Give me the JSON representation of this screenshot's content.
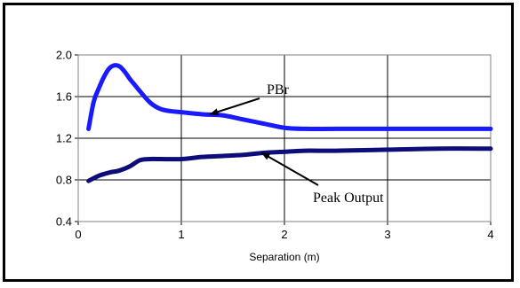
{
  "chart_data": {
    "type": "line",
    "title": "",
    "xlabel": "Separation (m)",
    "ylabel": "",
    "xlim": [
      0,
      4
    ],
    "ylim": [
      0.4,
      2.0
    ],
    "xticks": [
      "0",
      "1",
      "2",
      "3",
      "4"
    ],
    "yticks": [
      "0.4",
      "0.8",
      "1.2",
      "1.6",
      "2.0"
    ],
    "grid": true,
    "series": [
      {
        "name": "PBr",
        "color": "#1a1aff",
        "x": [
          0.1,
          0.15,
          0.2,
          0.25,
          0.3,
          0.35,
          0.4,
          0.45,
          0.5,
          0.55,
          0.6,
          0.7,
          0.8,
          0.9,
          1.0,
          1.2,
          1.4,
          1.6,
          1.8,
          2.0,
          2.2,
          2.5,
          3.0,
          3.5,
          4.0
        ],
        "values": [
          1.29,
          1.55,
          1.68,
          1.79,
          1.87,
          1.9,
          1.89,
          1.84,
          1.77,
          1.71,
          1.65,
          1.54,
          1.48,
          1.46,
          1.45,
          1.43,
          1.42,
          1.38,
          1.34,
          1.3,
          1.29,
          1.29,
          1.29,
          1.29,
          1.29
        ]
      },
      {
        "name": "Peak Output",
        "color": "#0d0d7a",
        "x": [
          0.1,
          0.2,
          0.3,
          0.4,
          0.5,
          0.6,
          0.7,
          0.8,
          1.0,
          1.2,
          1.4,
          1.6,
          1.8,
          2.0,
          2.2,
          2.5,
          3.0,
          3.5,
          4.0
        ],
        "values": [
          0.79,
          0.84,
          0.87,
          0.89,
          0.93,
          0.99,
          1.0,
          1.0,
          1.0,
          1.02,
          1.03,
          1.04,
          1.06,
          1.07,
          1.08,
          1.08,
          1.09,
          1.1,
          1.1
        ]
      }
    ],
    "annotations": [
      {
        "text": "PBr",
        "series": "PBr",
        "x": 1.28,
        "y": 1.43
      },
      {
        "text": "Peak Output",
        "series": "Peak Output",
        "x": 1.78,
        "y": 1.06
      }
    ]
  }
}
